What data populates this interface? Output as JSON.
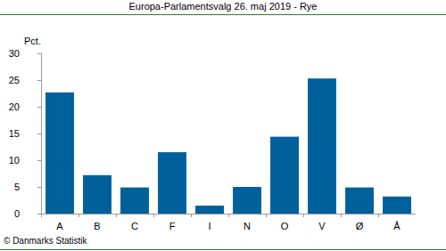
{
  "chart_data": {
    "type": "bar",
    "title": "Europa-Parlamentsvalg 26. maj 2019 - Rye",
    "y_label": "Pct.",
    "source": "© Danmarks Statistik",
    "categories": [
      "A",
      "B",
      "C",
      "F",
      "I",
      "N",
      "O",
      "V",
      "Ø",
      "Å"
    ],
    "values": [
      22.7,
      7.2,
      4.9,
      11.5,
      1.5,
      5.0,
      14.4,
      25.3,
      4.9,
      3.2
    ],
    "color": "#00609c",
    "ylim": [
      0,
      30
    ],
    "yticks": [
      0,
      5,
      10,
      15,
      20,
      25,
      30
    ],
    "grid": false
  }
}
